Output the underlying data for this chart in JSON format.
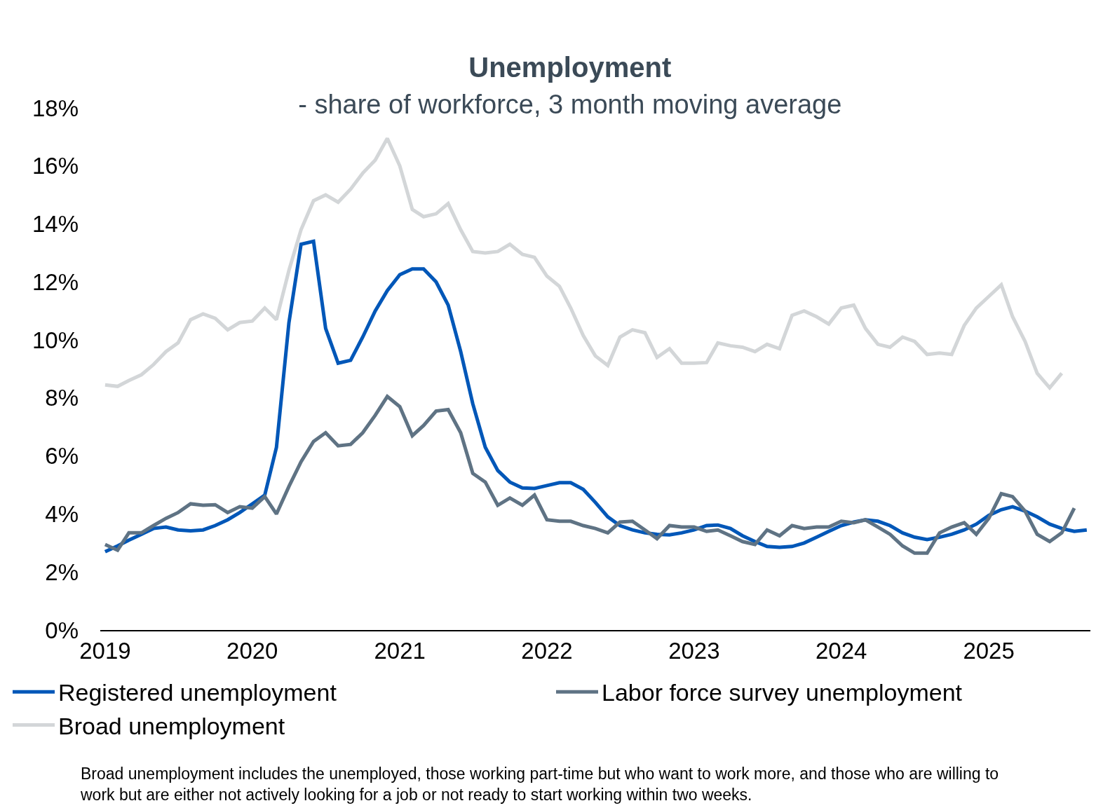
{
  "chart_data": {
    "type": "line",
    "title": "Unemployment",
    "subtitle": "- share of workforce, 3 month moving average",
    "x": [
      "2019-01",
      "2019-02",
      "2019-03",
      "2019-04",
      "2019-05",
      "2019-06",
      "2019-07",
      "2019-08",
      "2019-09",
      "2019-10",
      "2019-11",
      "2019-12",
      "2020-01",
      "2020-02",
      "2020-03",
      "2020-04",
      "2020-05",
      "2020-06",
      "2020-07",
      "2020-08",
      "2020-09",
      "2020-10",
      "2020-11",
      "2020-12",
      "2021-01",
      "2021-02",
      "2021-03",
      "2021-04",
      "2021-05",
      "2021-06",
      "2021-07",
      "2021-08",
      "2021-09",
      "2021-10",
      "2021-11",
      "2021-12",
      "2022-01",
      "2022-02",
      "2022-03",
      "2022-04",
      "2022-05",
      "2022-06",
      "2022-07",
      "2022-08",
      "2022-09",
      "2022-10",
      "2022-11",
      "2022-12",
      "2023-01",
      "2023-02",
      "2023-03",
      "2023-04",
      "2023-05",
      "2023-06",
      "2023-07",
      "2023-08",
      "2023-09",
      "2023-10",
      "2023-11",
      "2023-12",
      "2024-01",
      "2024-02",
      "2024-03",
      "2024-04",
      "2024-05",
      "2024-06",
      "2024-07",
      "2024-08",
      "2024-09",
      "2024-10",
      "2024-11",
      "2024-12",
      "2025-01",
      "2025-02",
      "2025-03",
      "2025-04",
      "2025-05",
      "2025-06",
      "2025-07",
      "2025-08",
      "2025-09"
    ],
    "series": [
      {
        "name": "Registered unemployment",
        "color": "#0057b8",
        "values": [
          2.7,
          2.9,
          3.1,
          3.3,
          3.5,
          3.55,
          3.45,
          3.42,
          3.45,
          3.6,
          3.8,
          4.05,
          4.35,
          4.65,
          6.3,
          10.6,
          13.3,
          13.4,
          10.4,
          9.2,
          9.3,
          10.1,
          11.0,
          11.7,
          12.25,
          12.45,
          12.45,
          12.0,
          11.2,
          9.6,
          7.8,
          6.3,
          5.5,
          5.1,
          4.9,
          4.88,
          4.98,
          5.08,
          5.08,
          4.85,
          4.4,
          3.9,
          3.6,
          3.45,
          3.35,
          3.3,
          3.28,
          3.35,
          3.45,
          3.6,
          3.62,
          3.5,
          3.25,
          3.05,
          2.88,
          2.85,
          2.88,
          3.0,
          3.2,
          3.4,
          3.6,
          3.72,
          3.8,
          3.75,
          3.6,
          3.35,
          3.2,
          3.12,
          3.2,
          3.3,
          3.45,
          3.65,
          3.95,
          4.15,
          4.25,
          4.1,
          3.9,
          3.65,
          3.5,
          3.4,
          3.45
        ]
      },
      {
        "name": "Labor force survey unemployment",
        "color": "#5f7384",
        "values": [
          2.95,
          2.75,
          3.35,
          3.35,
          3.6,
          3.85,
          4.05,
          4.35,
          4.3,
          4.32,
          4.05,
          4.25,
          4.2,
          4.6,
          4.0,
          4.95,
          5.8,
          6.5,
          6.8,
          6.35,
          6.4,
          6.8,
          7.4,
          8.05,
          7.7,
          6.7,
          7.05,
          7.55,
          7.6,
          6.8,
          5.4,
          5.1,
          4.3,
          4.55,
          4.3,
          4.65,
          3.8,
          3.75,
          3.75,
          3.6,
          3.5,
          3.35,
          3.72,
          3.75,
          3.45,
          3.15,
          3.6,
          3.55,
          3.55,
          3.4,
          3.45,
          3.25,
          3.05,
          2.95,
          3.45,
          3.25,
          3.6,
          3.5,
          3.55,
          3.55,
          3.75,
          3.7,
          3.8,
          3.55,
          3.3,
          2.9,
          2.65,
          2.65,
          3.35,
          3.55,
          3.7,
          3.3,
          3.85,
          4.7,
          4.6,
          4.1,
          3.3,
          3.05,
          3.35,
          4.2,
          null
        ]
      },
      {
        "name": "Broad unemployment",
        "color": "#d3d6d8",
        "values": [
          8.45,
          8.4,
          8.6,
          8.8,
          9.15,
          9.6,
          9.9,
          10.7,
          10.9,
          10.75,
          10.35,
          10.6,
          10.65,
          11.1,
          10.7,
          12.4,
          13.8,
          14.8,
          15.0,
          14.75,
          15.2,
          15.75,
          16.2,
          16.95,
          16.0,
          14.5,
          14.25,
          14.35,
          14.7,
          13.8,
          13.05,
          13.0,
          13.05,
          13.3,
          12.95,
          12.85,
          12.2,
          11.85,
          11.1,
          10.15,
          9.45,
          9.12,
          10.1,
          10.35,
          10.25,
          9.4,
          9.7,
          9.2,
          9.2,
          9.22,
          9.9,
          9.8,
          9.75,
          9.6,
          9.85,
          9.7,
          10.85,
          11.0,
          10.8,
          10.55,
          11.1,
          11.2,
          10.4,
          9.85,
          9.75,
          10.1,
          9.95,
          9.5,
          9.55,
          9.5,
          10.5,
          11.1,
          11.5,
          11.9,
          10.8,
          9.95,
          8.85,
          8.35,
          8.85,
          null,
          null
        ]
      }
    ],
    "xlim": [
      "2018-12-20",
      "2025-09-10"
    ],
    "xticks": [
      {
        "value": "2019-01-01",
        "label": "2019"
      },
      {
        "value": "2020-01-01",
        "label": "2020"
      },
      {
        "value": "2021-01-01",
        "label": "2021"
      },
      {
        "value": "2022-01-01",
        "label": "2022"
      },
      {
        "value": "2023-01-01",
        "label": "2023"
      },
      {
        "value": "2024-01-01",
        "label": "2024"
      },
      {
        "value": "2025-01-01",
        "label": "2025"
      }
    ],
    "ylim": [
      0,
      18
    ],
    "yticks": [
      {
        "value": 0,
        "label": "0%"
      },
      {
        "value": 2,
        "label": "2%"
      },
      {
        "value": 4,
        "label": "4%"
      },
      {
        "value": 6,
        "label": "6%"
      },
      {
        "value": 8,
        "label": "8%"
      },
      {
        "value": 10,
        "label": "10%"
      },
      {
        "value": 12,
        "label": "12%"
      },
      {
        "value": 14,
        "label": "14%"
      },
      {
        "value": 16,
        "label": "16%"
      },
      {
        "value": 18,
        "label": "18%"
      }
    ],
    "grid": false,
    "legend": "bottom",
    "marker": "none",
    "line_style": "solid",
    "annotations": [
      "Broad unemployment includes the unemployed, those working part-time but who want to work more, and those who are willing to work but are either not actively looking for a job or not ready to start working within two weeks."
    ]
  }
}
